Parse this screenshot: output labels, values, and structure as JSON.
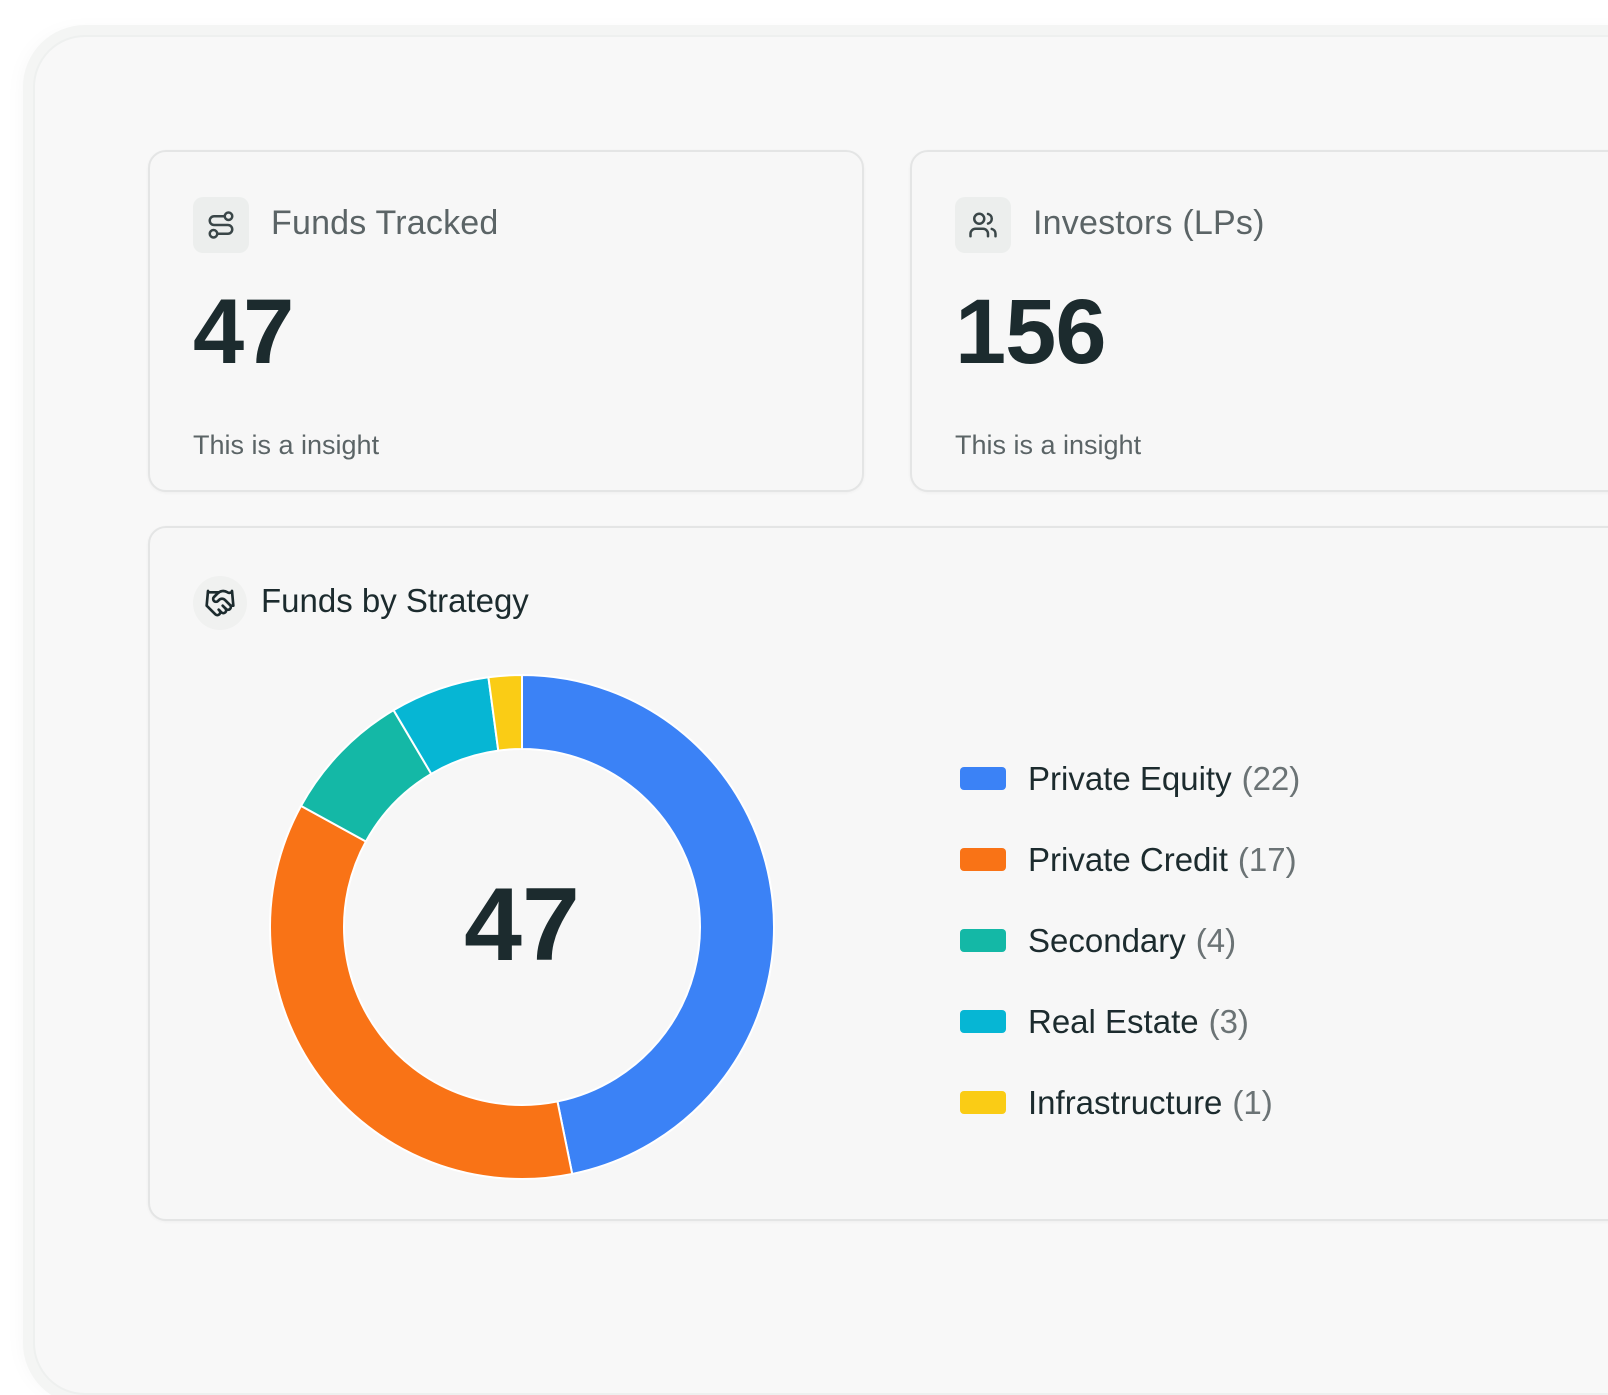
{
  "stats": {
    "funds": {
      "label": "Funds Tracked",
      "value": "47",
      "insight": "This is a insight",
      "icon": "route-icon"
    },
    "investors": {
      "label": "Investors (LPs)",
      "value": "156",
      "insight": "This is a insight",
      "icon": "users-icon"
    }
  },
  "chart_panel": {
    "title": "Funds by Strategy",
    "icon": "handshake-icon",
    "center_label": "47"
  },
  "chart_data": {
    "type": "pie",
    "title": "Funds by Strategy",
    "categories": [
      "Private Equity",
      "Private Credit",
      "Secondary",
      "Real Estate",
      "Infrastructure"
    ],
    "values": [
      22,
      17,
      4,
      3,
      1
    ],
    "colors": [
      "#3b82f6",
      "#f97316",
      "#14b8a6",
      "#06b6d4",
      "#facc15"
    ],
    "legend_position": "right",
    "legend": [
      {
        "name": "Private Equity",
        "count": "(22)",
        "color": "#3b82f6"
      },
      {
        "name": "Private Credit",
        "count": "(17)",
        "color": "#f97316"
      },
      {
        "name": "Secondary",
        "count": "(4)",
        "color": "#14b8a6"
      },
      {
        "name": "Real Estate",
        "count": "(3)",
        "color": "#06b6d4"
      },
      {
        "name": "Infrastructure",
        "count": "(1)",
        "color": "#facc15"
      }
    ]
  }
}
